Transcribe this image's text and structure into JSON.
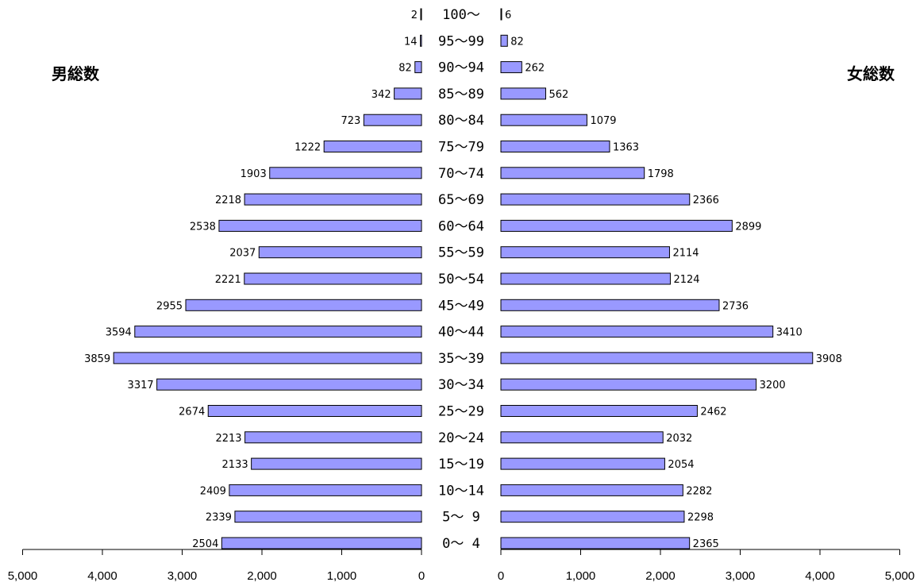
{
  "chart_data": {
    "type": "bar",
    "orientation": "horizontal",
    "layout": "population-pyramid",
    "left_title": "男総数",
    "right_title": "女総数",
    "categories": [
      "0～ 4",
      "5～ 9",
      "10～14",
      "15～19",
      "20～24",
      "25～29",
      "30～34",
      "35～39",
      "40～44",
      "45～49",
      "50～54",
      "55～59",
      "60～64",
      "65～69",
      "70～74",
      "75～79",
      "80～84",
      "85～89",
      "90～94",
      "95～99",
      "100～"
    ],
    "series": [
      {
        "name": "男総数",
        "side": "left",
        "values": [
          2504,
          2339,
          2409,
          2133,
          2213,
          2674,
          3317,
          3859,
          3594,
          2955,
          2221,
          2037,
          2538,
          2218,
          1903,
          1222,
          723,
          342,
          82,
          14,
          2
        ]
      },
      {
        "name": "女総数",
        "side": "right",
        "values": [
          2365,
          2298,
          2282,
          2054,
          2032,
          2462,
          3200,
          3908,
          3410,
          2736,
          2124,
          2114,
          2899,
          2366,
          1798,
          1363,
          1079,
          562,
          262,
          82,
          6
        ]
      }
    ],
    "xlim": [
      0,
      5000
    ],
    "left_ticks": [
      "5,000",
      "4,000",
      "3,000",
      "2,000",
      "1,000",
      "0"
    ],
    "right_ticks": [
      "0",
      "1,000",
      "2,000",
      "3,000",
      "4,000",
      "5,000"
    ],
    "bar_color": "#9999ff",
    "grid": false,
    "legend": "none"
  }
}
